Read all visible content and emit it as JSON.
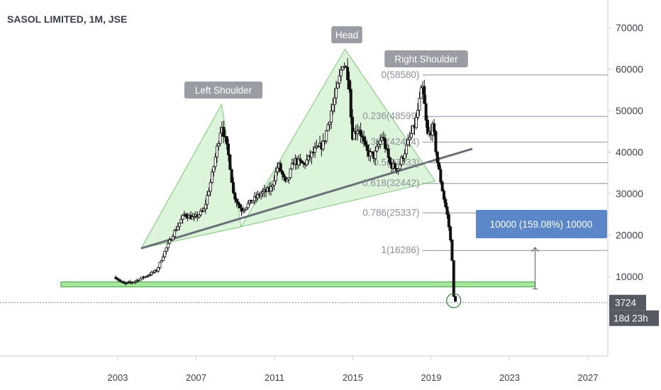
{
  "header": {
    "title": "SASOL LIMITED, 1M, JSE"
  },
  "colors": {
    "candle": "#111111",
    "triangle_fill": "#d6f2d2",
    "triangle_stroke": "#7dc779",
    "support_fill": "#a8e6a0",
    "trendline": "#6b6f78",
    "fib_line": "#8a8f99",
    "measure_box": "#5b86c8",
    "label_bg": "#9a9da3",
    "badge_bg": "#555a63"
  },
  "annotations": {
    "left_shoulder": "Left Shoulder",
    "head": "Head",
    "right_shoulder": "Right Shoulder",
    "measure_label": "10000 (159.08%) 10000"
  },
  "price_badge": {
    "value": "3724",
    "countdown": "18d 23h"
  },
  "fib_levels": [
    {
      "label": "0(58580)",
      "value": 58580
    },
    {
      "label": "0.236(48599)",
      "value": 48599
    },
    {
      "label": "0.382(42424)",
      "value": 42424
    },
    {
      "label": "0.5(37433)",
      "value": 37433
    },
    {
      "label": "0.618(32442)",
      "value": 32442
    },
    {
      "label": "0.786(25337)",
      "value": 25337
    },
    {
      "label": "1(16286)",
      "value": 16286
    }
  ],
  "chart_data": {
    "type": "candlestick",
    "title": "SASOL LIMITED, 1M, JSE",
    "xlabel": "",
    "ylabel": "",
    "x_ticks": [
      "2003",
      "2007",
      "2011",
      "2015",
      "2019",
      "2023",
      "2027"
    ],
    "y_ticks": [
      "10000",
      "20000",
      "30000",
      "40000",
      "50000",
      "60000",
      "70000"
    ],
    "xlim": [
      2000.0,
      2028.0
    ],
    "ylim": [
      -5000,
      75000
    ],
    "current_price": 3724,
    "series": [
      {
        "anchors": [
          [
            2002.9,
            9800
          ],
          [
            2003.3,
            8200
          ],
          [
            2003.8,
            8700
          ],
          [
            2004.4,
            10000
          ],
          [
            2005.0,
            11500
          ],
          [
            2005.4,
            16000
          ],
          [
            2005.8,
            20000
          ],
          [
            2006.4,
            25000
          ],
          [
            2006.9,
            24000
          ],
          [
            2007.4,
            26000
          ],
          [
            2007.8,
            34000
          ],
          [
            2008.3,
            47000
          ],
          [
            2008.7,
            38000
          ],
          [
            2008.9,
            30000
          ],
          [
            2009.3,
            26000
          ],
          [
            2009.8,
            28000
          ],
          [
            2010.3,
            30000
          ],
          [
            2010.8,
            31000
          ],
          [
            2011.2,
            37000
          ],
          [
            2011.6,
            32000
          ],
          [
            2012.0,
            38000
          ],
          [
            2012.5,
            37000
          ],
          [
            2013.0,
            40000
          ],
          [
            2013.5,
            42000
          ],
          [
            2013.9,
            50000
          ],
          [
            2014.2,
            55000
          ],
          [
            2014.5,
            62000
          ],
          [
            2014.8,
            58000
          ],
          [
            2014.95,
            44000
          ],
          [
            2015.3,
            46000
          ],
          [
            2015.7,
            40000
          ],
          [
            2016.1,
            39000
          ],
          [
            2016.5,
            44000
          ],
          [
            2016.9,
            37000
          ],
          [
            2017.3,
            36000
          ],
          [
            2017.8,
            42000
          ],
          [
            2018.2,
            47000
          ],
          [
            2018.55,
            56000
          ],
          [
            2018.8,
            44000
          ],
          [
            2019.1,
            46000
          ],
          [
            2019.3,
            38000
          ],
          [
            2019.6,
            30000
          ],
          [
            2019.85,
            24000
          ],
          [
            2020.05,
            16000
          ],
          [
            2020.15,
            5000
          ],
          [
            2020.25,
            3724
          ]
        ]
      }
    ],
    "patterns": {
      "left_shoulder_triangle": [
        [
          2004.2,
          16800
        ],
        [
          2008.3,
          51500
        ],
        [
          2009.3,
          22000
        ]
      ],
      "head_triangle": [
        [
          2009.3,
          22000
        ],
        [
          2014.6,
          64800
        ],
        [
          2019.2,
          33000
        ]
      ],
      "neckline": [
        [
          2004.2,
          16800
        ],
        [
          2021.1,
          40800
        ]
      ],
      "support_zone": {
        "x": [
          2000.1,
          2024.3
        ],
        "y": [
          7500,
          8700
        ]
      },
      "measure_arrow": {
        "x": 2024.3,
        "y_from": 7000,
        "y_to": 17000
      },
      "circle_marker": {
        "x": 2020.15,
        "y": 4200
      }
    }
  }
}
